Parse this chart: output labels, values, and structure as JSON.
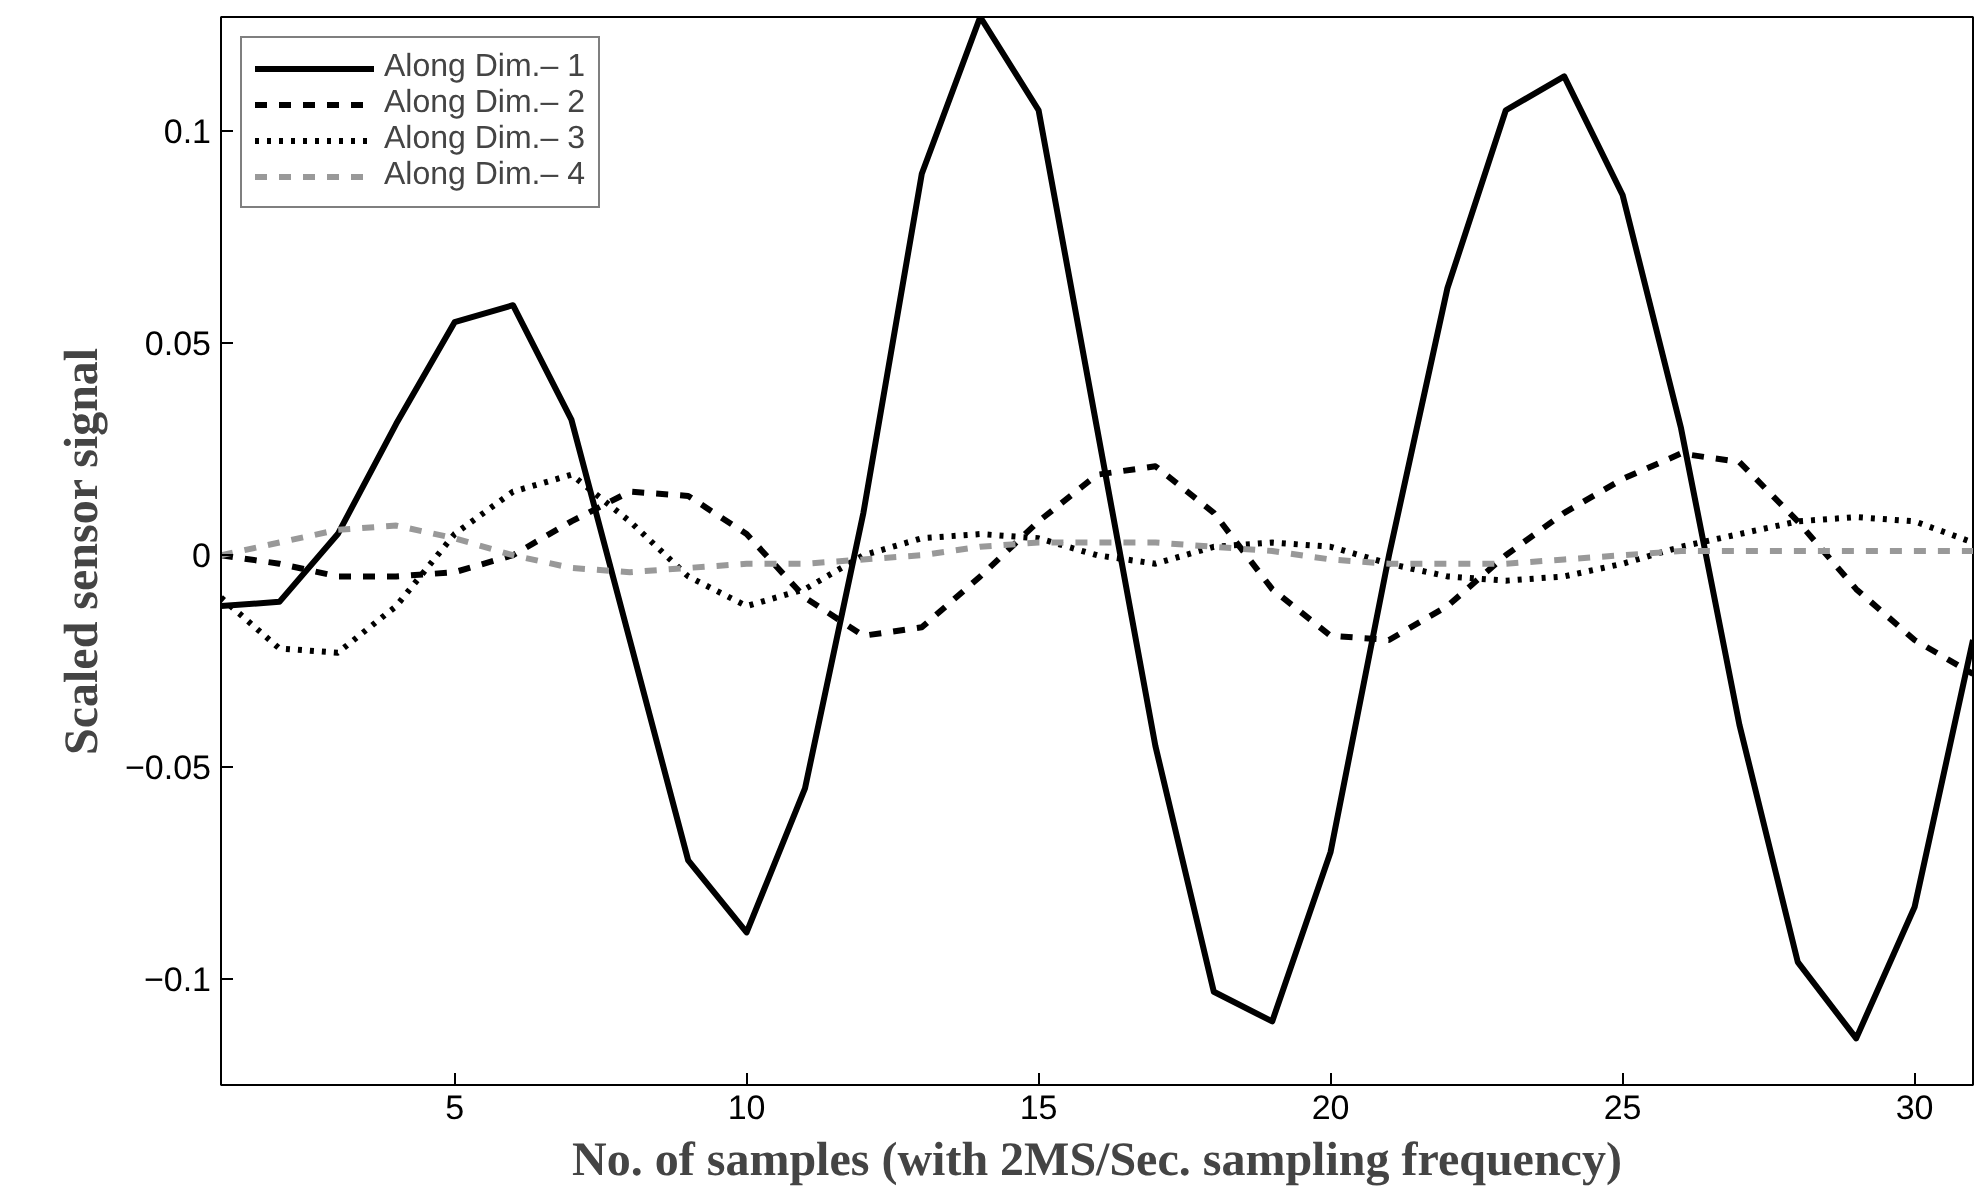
{
  "chart_data": {
    "type": "line",
    "xlabel": "No. of samples (with 2MS/Sec. sampling frequency)",
    "ylabel": "Scaled sensor signal",
    "x": [
      1,
      2,
      3,
      4,
      5,
      6,
      7,
      8,
      9,
      10,
      11,
      12,
      13,
      14,
      15,
      16,
      17,
      18,
      19,
      20,
      21,
      22,
      23,
      24,
      25,
      26,
      27,
      28,
      29,
      30,
      31
    ],
    "xlim": [
      1,
      31
    ],
    "xticks": [
      5,
      10,
      15,
      20,
      25,
      30
    ],
    "ylim": [
      -0.125,
      0.127
    ],
    "yticks": [
      -0.1,
      -0.05,
      0,
      0.05,
      0.1
    ],
    "grid": false,
    "legend": "top left",
    "marker": "none",
    "series": [
      {
        "name": "Along Dim.– 1",
        "color": "#000000",
        "line_style": "solid",
        "values": [
          -0.012,
          -0.011,
          0.005,
          0.031,
          0.055,
          0.059,
          0.032,
          -0.02,
          -0.072,
          -0.089,
          -0.055,
          0.01,
          0.09,
          0.127,
          0.105,
          0.03,
          -0.045,
          -0.103,
          -0.11,
          -0.07,
          0.0,
          0.063,
          0.105,
          0.113,
          0.085,
          0.03,
          -0.04,
          -0.096,
          -0.114,
          -0.083,
          -0.02
        ]
      },
      {
        "name": "Along Dim.– 2",
        "color": "#000000",
        "line_style": "dashed",
        "values": [
          0,
          -0.002,
          -0.005,
          -0.005,
          -0.004,
          0.0,
          0.008,
          0.015,
          0.014,
          0.005,
          -0.01,
          -0.019,
          -0.017,
          -0.005,
          0.008,
          0.019,
          0.021,
          0.01,
          -0.008,
          -0.019,
          -0.02,
          -0.012,
          0.0,
          0.01,
          0.018,
          0.024,
          0.022,
          0.008,
          -0.008,
          -0.02,
          -0.028
        ]
      },
      {
        "name": "Along Dim.– 3",
        "color": "#000000",
        "line_style": "dotted",
        "values": [
          -0.01,
          -0.022,
          -0.023,
          -0.012,
          0.005,
          0.015,
          0.019,
          0.008,
          -0.005,
          -0.012,
          -0.008,
          0.0,
          0.004,
          0.005,
          0.004,
          0.0,
          -0.002,
          0.002,
          0.003,
          0.002,
          -0.002,
          -0.005,
          -0.006,
          -0.005,
          -0.002,
          0.002,
          0.005,
          0.008,
          0.009,
          0.008,
          0.003
        ]
      },
      {
        "name": "Along Dim.– 4",
        "color": "#999999",
        "line_style": "dashed",
        "values": [
          0,
          0.003,
          0.006,
          0.007,
          0.004,
          0.0,
          -0.003,
          -0.004,
          -0.003,
          -0.002,
          -0.002,
          -0.001,
          0.0,
          0.002,
          0.003,
          0.003,
          0.003,
          0.002,
          0.001,
          -0.001,
          -0.002,
          -0.002,
          -0.002,
          -0.001,
          0,
          0.001,
          0.001,
          0.001,
          0.001,
          0.001,
          0.001
        ]
      }
    ]
  }
}
